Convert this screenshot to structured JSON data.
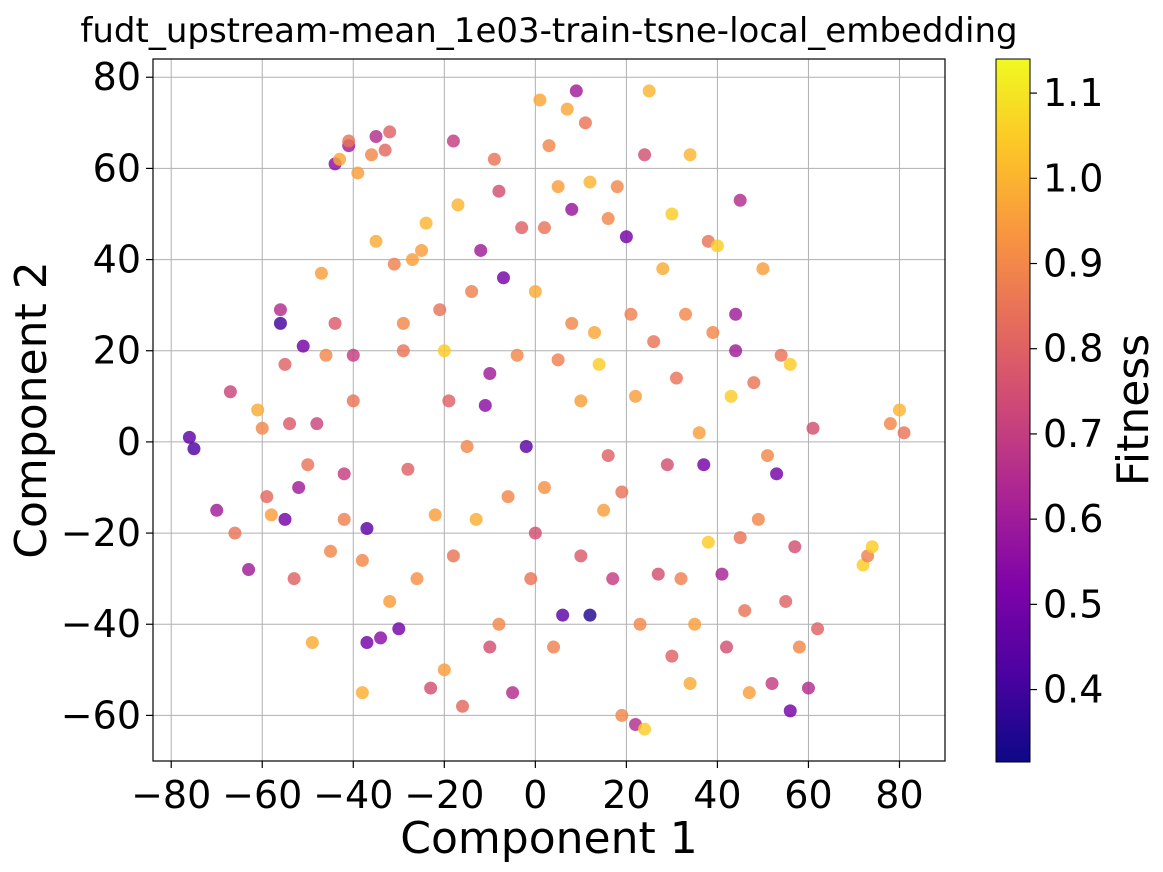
{
  "chart_data": {
    "type": "scatter",
    "title": "fudt_upstream-mean_1e03-train-tsne-local_embedding",
    "xlabel": "Component 1",
    "ylabel": "Component 2",
    "xlim": [
      -84,
      90
    ],
    "ylim": [
      -70,
      84
    ],
    "xticks": [
      -80,
      -60,
      -40,
      -20,
      0,
      20,
      40,
      60,
      80
    ],
    "xtick_labels": [
      "−80",
      "−60",
      "−40",
      "−20",
      "0",
      "20",
      "40",
      "60",
      "80"
    ],
    "yticks": [
      -60,
      -40,
      -20,
      0,
      20,
      40,
      60,
      80
    ],
    "ytick_labels": [
      "−60",
      "−40",
      "−20",
      "0",
      "20",
      "40",
      "60",
      "80"
    ],
    "grid": true,
    "colorbar": {
      "label": "Fitness",
      "colormap": "plasma",
      "range": [
        0.315,
        1.14
      ],
      "ticks": [
        0.4,
        0.5,
        0.6,
        0.7,
        0.8,
        0.9,
        1.0,
        1.1
      ],
      "tick_labels": [
        "0.4",
        "0.5",
        "0.6",
        "0.7",
        "0.8",
        "0.9",
        "1.0",
        "1.1"
      ]
    },
    "points": [
      [
        -76,
        1,
        0.45
      ],
      [
        -75,
        -1.5,
        0.42
      ],
      [
        -70,
        -15,
        0.6
      ],
      [
        -67,
        11,
        0.72
      ],
      [
        -66,
        -20,
        0.85
      ],
      [
        -63,
        -28,
        0.6
      ],
      [
        -61,
        7,
        0.98
      ],
      [
        -60,
        3,
        0.9
      ],
      [
        -59,
        -12,
        0.82
      ],
      [
        -58,
        -16,
        0.95
      ],
      [
        -56,
        29,
        0.65
      ],
      [
        -56,
        26,
        0.4
      ],
      [
        -55,
        -17,
        0.5
      ],
      [
        -55,
        17,
        0.8
      ],
      [
        -54,
        4,
        0.78
      ],
      [
        -53,
        -30,
        0.8
      ],
      [
        -52,
        -10,
        0.6
      ],
      [
        -51,
        21,
        0.5
      ],
      [
        -50,
        -5,
        0.85
      ],
      [
        -49,
        -44,
        0.98
      ],
      [
        -48,
        4,
        0.72
      ],
      [
        -47,
        37,
        0.95
      ],
      [
        -46,
        19,
        0.9
      ],
      [
        -45,
        -24,
        0.9
      ],
      [
        -44,
        26,
        0.78
      ],
      [
        -44,
        61,
        0.55
      ],
      [
        -43,
        62,
        0.97
      ],
      [
        -42,
        -17,
        0.88
      ],
      [
        -42,
        -7,
        0.7
      ],
      [
        -41,
        65,
        0.6
      ],
      [
        -41,
        66,
        0.85
      ],
      [
        -40,
        19,
        0.7
      ],
      [
        -40,
        9,
        0.85
      ],
      [
        -39,
        59,
        0.95
      ],
      [
        -38,
        -26,
        0.9
      ],
      [
        -38,
        -55,
        0.99
      ],
      [
        -37,
        -19,
        0.45
      ],
      [
        -37,
        -44,
        0.5
      ],
      [
        -36,
        63,
        0.9
      ],
      [
        -35,
        67,
        0.65
      ],
      [
        -35,
        44,
        0.98
      ],
      [
        -34,
        -43,
        0.55
      ],
      [
        -33,
        64,
        0.82
      ],
      [
        -32,
        68,
        0.8
      ],
      [
        -32,
        -35,
        0.95
      ],
      [
        -31,
        39,
        0.88
      ],
      [
        -30,
        -41,
        0.5
      ],
      [
        -29,
        20,
        0.85
      ],
      [
        -29,
        26,
        0.9
      ],
      [
        -28,
        -6,
        0.8
      ],
      [
        -27,
        40,
        0.95
      ],
      [
        -26,
        -30,
        0.92
      ],
      [
        -25,
        42,
        0.95
      ],
      [
        -24,
        48,
        1.0
      ],
      [
        -23,
        -54,
        0.75
      ],
      [
        -22,
        -16,
        0.95
      ],
      [
        -21,
        29,
        0.85
      ],
      [
        -20,
        20,
        1.05
      ],
      [
        -20,
        -50,
        0.95
      ],
      [
        -19,
        9,
        0.8
      ],
      [
        -18,
        66,
        0.7
      ],
      [
        -18,
        -25,
        0.85
      ],
      [
        -17,
        52,
        1.0
      ],
      [
        -16,
        -58,
        0.82
      ],
      [
        -15,
        -1,
        0.9
      ],
      [
        -14,
        33,
        0.88
      ],
      [
        -13,
        -17,
        0.99
      ],
      [
        -12,
        42,
        0.6
      ],
      [
        -11,
        8,
        0.55
      ],
      [
        -10,
        15,
        0.6
      ],
      [
        -10,
        -45,
        0.75
      ],
      [
        -9,
        62,
        0.85
      ],
      [
        -8,
        55,
        0.75
      ],
      [
        -8,
        -40,
        0.9
      ],
      [
        -7,
        36,
        0.5
      ],
      [
        -6,
        -12,
        0.9
      ],
      [
        -5,
        -55,
        0.65
      ],
      [
        -4,
        19,
        0.9
      ],
      [
        -3,
        47,
        0.8
      ],
      [
        -2,
        -1,
        0.45
      ],
      [
        -1,
        -30,
        0.85
      ],
      [
        0,
        33,
        0.98
      ],
      [
        0,
        -20,
        0.75
      ],
      [
        1,
        75,
        0.97
      ],
      [
        2,
        47,
        0.85
      ],
      [
        2,
        -10,
        0.92
      ],
      [
        3,
        65,
        0.9
      ],
      [
        4,
        -45,
        0.88
      ],
      [
        5,
        56,
        0.95
      ],
      [
        5,
        18,
        0.88
      ],
      [
        6,
        -38,
        0.45
      ],
      [
        7,
        73,
        0.97
      ],
      [
        8,
        26,
        0.9
      ],
      [
        8,
        51,
        0.58
      ],
      [
        9,
        77,
        0.6
      ],
      [
        10,
        9,
        0.95
      ],
      [
        10,
        -25,
        0.78
      ],
      [
        11,
        70,
        0.85
      ],
      [
        12,
        57,
        1.0
      ],
      [
        12,
        -38,
        0.35
      ],
      [
        13,
        24,
        0.97
      ],
      [
        14,
        17,
        1.05
      ],
      [
        15,
        -15,
        0.95
      ],
      [
        16,
        49,
        0.9
      ],
      [
        16,
        -3,
        0.8
      ],
      [
        17,
        -30,
        0.7
      ],
      [
        18,
        56,
        0.9
      ],
      [
        19,
        -60,
        0.9
      ],
      [
        19,
        -11,
        0.85
      ],
      [
        20,
        45,
        0.5
      ],
      [
        21,
        28,
        0.88
      ],
      [
        22,
        10,
        0.95
      ],
      [
        22,
        -62,
        0.65
      ],
      [
        23,
        -40,
        0.9
      ],
      [
        24,
        63,
        0.75
      ],
      [
        24,
        -63,
        1.05
      ],
      [
        25,
        77,
        1.0
      ],
      [
        26,
        22,
        0.85
      ],
      [
        27,
        -29,
        0.75
      ],
      [
        28,
        38,
        0.98
      ],
      [
        29,
        -5,
        0.75
      ],
      [
        30,
        50,
        1.05
      ],
      [
        30,
        -47,
        0.8
      ],
      [
        31,
        14,
        0.85
      ],
      [
        32,
        -30,
        0.88
      ],
      [
        33,
        28,
        0.9
      ],
      [
        34,
        63,
        1.0
      ],
      [
        34,
        -53,
        0.98
      ],
      [
        35,
        -40,
        0.95
      ],
      [
        36,
        2,
        0.95
      ],
      [
        37,
        -5,
        0.5
      ],
      [
        38,
        44,
        0.85
      ],
      [
        38,
        -22,
        1.05
      ],
      [
        39,
        24,
        0.9
      ],
      [
        40,
        43,
        1.05
      ],
      [
        41,
        -29,
        0.62
      ],
      [
        42,
        -45,
        0.75
      ],
      [
        43,
        10,
        1.05
      ],
      [
        44,
        28,
        0.6
      ],
      [
        44,
        20,
        0.6
      ],
      [
        45,
        53,
        0.65
      ],
      [
        45,
        -21,
        0.85
      ],
      [
        46,
        -37,
        0.85
      ],
      [
        47,
        -55,
        0.95
      ],
      [
        48,
        13,
        0.85
      ],
      [
        49,
        -17,
        0.9
      ],
      [
        50,
        38,
        0.95
      ],
      [
        51,
        -3,
        0.9
      ],
      [
        52,
        -53,
        0.7
      ],
      [
        53,
        -7,
        0.5
      ],
      [
        54,
        19,
        0.85
      ],
      [
        55,
        -35,
        0.8
      ],
      [
        56,
        -59,
        0.5
      ],
      [
        56,
        17,
        1.05
      ],
      [
        57,
        -23,
        0.75
      ],
      [
        58,
        -45,
        0.9
      ],
      [
        60,
        -54,
        0.65
      ],
      [
        61,
        3,
        0.75
      ],
      [
        62,
        -41,
        0.8
      ],
      [
        72,
        -27,
        1.05
      ],
      [
        73,
        -25,
        0.88
      ],
      [
        74,
        -23,
        1.05
      ],
      [
        78,
        4,
        0.9
      ],
      [
        80,
        7,
        1.0
      ],
      [
        81,
        2,
        0.85
      ]
    ]
  }
}
